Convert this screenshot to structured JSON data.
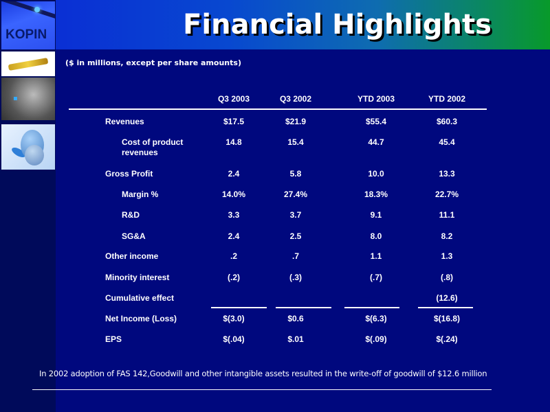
{
  "title": "Financial Highlights",
  "logo_text": "KOPIN",
  "subtitle": "($ in millions, except per share amounts)",
  "columns": [
    "Q3 2003",
    "Q3 2002",
    "YTD 2003",
    "YTD 2002"
  ],
  "rows": [
    {
      "label": "Revenues",
      "indent": false,
      "values": [
        "$17.5",
        "$21.9",
        "$55.4",
        "$60.3"
      ]
    },
    {
      "label": "Cost of product revenues",
      "indent": true,
      "values": [
        "14.8",
        "15.4",
        "44.7",
        "45.4"
      ]
    },
    {
      "label": "Gross Profit",
      "indent": false,
      "values": [
        "2.4",
        "5.8",
        "10.0",
        "13.3"
      ]
    },
    {
      "label": "Margin %",
      "indent": true,
      "values": [
        "14.0%",
        "27.4%",
        "18.3%",
        "22.7%"
      ]
    },
    {
      "label": "R&D",
      "indent": true,
      "values": [
        "3.3",
        "3.7",
        "9.1",
        "11.1"
      ]
    },
    {
      "label": "SG&A",
      "indent": true,
      "values": [
        "2.4",
        "2.5",
        "8.0",
        "8.2"
      ]
    },
    {
      "label": "Other income",
      "indent": false,
      "values": [
        ".2",
        ".7",
        "1.1",
        "1.3"
      ]
    },
    {
      "label": "Minority interest",
      "indent": false,
      "values": [
        "(.2)",
        "(.3)",
        "(.7)",
        "(.8)"
      ]
    },
    {
      "label": "Cumulative effect",
      "indent": false,
      "values": [
        "",
        "",
        "",
        "(12.6)"
      ]
    },
    {
      "label": "Net Income (Loss)",
      "indent": false,
      "values": [
        "$(3.0)",
        "$0.6",
        "$(6.3)",
        "$(16.8)"
      ]
    },
    {
      "label": "EPS",
      "indent": false,
      "values": [
        "$(.04)",
        "$.01",
        "$(.09)",
        "$(.24)"
      ]
    }
  ],
  "footnote": "In 2002 adoption of FAS 142,Goodwill and other intangible assets resulted in the write-off of goodwill of $12.6 million"
}
